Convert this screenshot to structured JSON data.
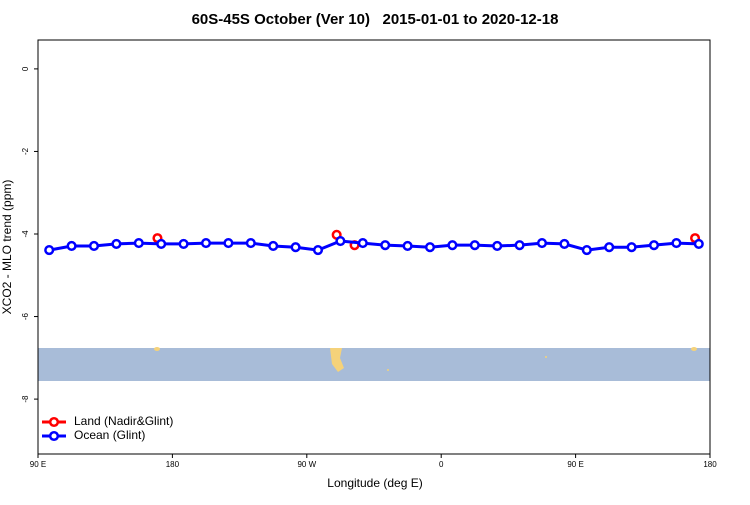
{
  "chart_data": {
    "type": "line",
    "title": "60S-45S October (Ver 10)   2015-01-01 to 2020-12-18",
    "xlabel": "Longitude (deg E)",
    "ylabel": "XCO2 - MLO trend (ppm)",
    "xlim": [
      90,
      540
    ],
    "ylim": [
      -9.33,
      0.7
    ],
    "xticks": [
      {
        "value": 90,
        "label": "90 E"
      },
      180,
      {
        "value": 270,
        "label": "90 W"
      },
      {
        "value": 360,
        "label": "0"
      },
      {
        "value": 450,
        "label": "90 E"
      },
      {
        "value": 540,
        "label": "180"
      }
    ],
    "yticks": [
      0,
      -2,
      -4,
      -6,
      -8
    ],
    "legend": "bottom-left",
    "series": [
      {
        "name": "Land (Nadir&Glint)",
        "color": "#ff0000",
        "x": [
          170,
          290,
          302,
          530
        ],
        "values": [
          -4.1,
          -4.02,
          -4.27,
          -4.1
        ]
      },
      {
        "name": "Ocean (Glint)",
        "color": "#0000ff",
        "x": [
          97.5,
          112.5,
          127.5,
          142.5,
          157.5,
          172.5,
          187.5,
          202.5,
          217.5,
          232.5,
          247.5,
          262.5,
          277.5,
          292.5,
          307.5,
          322.5,
          337.5,
          352.5,
          367.5,
          382.5,
          397.5,
          412.5,
          427.5,
          442.5,
          457.5,
          472.5,
          487.5,
          502.5,
          517.5,
          532.5
        ],
        "values": [
          -4.39,
          -4.29,
          -4.29,
          -4.24,
          -4.22,
          -4.24,
          -4.24,
          -4.22,
          -4.22,
          -4.22,
          -4.29,
          -4.32,
          -4.39,
          -4.17,
          -4.22,
          -4.27,
          -4.29,
          -4.32,
          -4.27,
          -4.27,
          -4.29,
          -4.27,
          -4.22,
          -4.24,
          -4.39,
          -4.32,
          -4.32,
          -4.27,
          -4.22,
          -4.24
        ]
      }
    ]
  }
}
